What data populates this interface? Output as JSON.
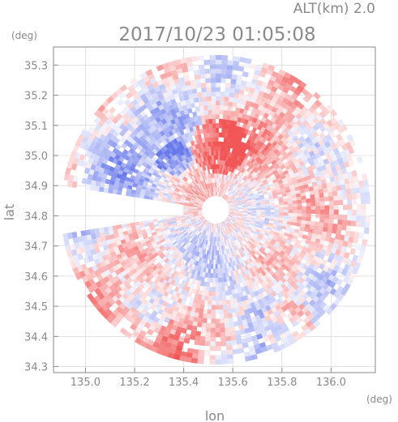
{
  "header": {
    "altitude": "ALT(km) 2.0",
    "timestamp": "2017/10/23 01:05:08",
    "lat_unit": "(deg)",
    "lon_unit": "(deg)"
  },
  "chart_data": {
    "type": "heatmap",
    "title": "2017/10/23 01:05:08",
    "subtitle": "ALT(km) 2.0",
    "xlabel": "lon",
    "ylabel": "lat",
    "xlim": [
      134.87,
      136.18
    ],
    "ylim": [
      34.28,
      35.36
    ],
    "x_ticks": [
      {
        "value": 135.0,
        "label": "135.0"
      },
      {
        "value": 135.2,
        "label": "135.2"
      },
      {
        "value": 135.4,
        "label": "135.4"
      },
      {
        "value": 135.6,
        "label": "135.6"
      },
      {
        "value": 135.8,
        "label": "135.8"
      },
      {
        "value": 136.0,
        "label": "136.0"
      }
    ],
    "y_ticks": [
      {
        "value": 34.3,
        "label": "34.3"
      },
      {
        "value": 34.4,
        "label": "34.4"
      },
      {
        "value": 34.5,
        "label": "34.5"
      },
      {
        "value": 34.6,
        "label": "34.6"
      },
      {
        "value": 34.7,
        "label": "34.7"
      },
      {
        "value": 34.8,
        "label": "34.8"
      },
      {
        "value": 34.9,
        "label": "34.9"
      },
      {
        "value": 35.0,
        "label": "35.0"
      },
      {
        "value": 35.1,
        "label": "35.1"
      },
      {
        "value": 35.2,
        "label": "35.2"
      },
      {
        "value": 35.3,
        "label": "35.3"
      }
    ],
    "radar_center": {
      "lon": 135.53,
      "lat": 34.82
    },
    "radar_range_deg": 0.63,
    "colors": {
      "toward": "#5b6ee8",
      "away": "#f04848",
      "neutral": "#ffffff",
      "axis": "#8a8a8a",
      "grid": "#cfcfcf"
    },
    "grid": true,
    "legend": "none"
  }
}
